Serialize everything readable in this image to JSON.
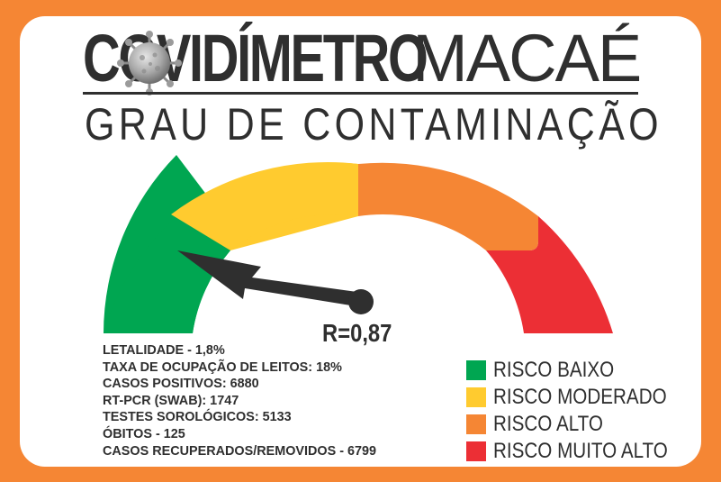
{
  "header": {
    "brand_bold": "COVIDÍMETRO",
    "brand_light": "MACAÉ",
    "subtitle": "GRAU DE CONTAMINAÇÃO"
  },
  "gauge": {
    "reading": "R=0,87",
    "segments": [
      {
        "name": "green",
        "color": "#00a651"
      },
      {
        "name": "yellow",
        "color": "#ffcb2f"
      },
      {
        "name": "orange",
        "color": "#f58634"
      },
      {
        "name": "red",
        "color": "#ec2f35"
      }
    ]
  },
  "stats": [
    "LETALIDADE - 1,8%",
    "TAXA DE OCUPAÇÃO DE LEITOS: 18%",
    "CASOS POSITIVOS: 6880",
    "RT-PCR (SWAB): 1747",
    "TESTES SOROLÓGICOS: 5133",
    "ÓBITOS - 125",
    "CASOS RECUPERADOS/REMOVIDOS - 6799"
  ],
  "legend": [
    {
      "label": "RISCO BAIXO",
      "color": "#00a651"
    },
    {
      "label": "RISCO MODERADO",
      "color": "#ffcb2f"
    },
    {
      "label": "RISCO ALTO",
      "color": "#f58634"
    },
    {
      "label": "RISCO MUITO ALTO",
      "color": "#ec2f35"
    }
  ],
  "colors": {
    "frame": "#f58634",
    "text": "#2f2f2f"
  }
}
